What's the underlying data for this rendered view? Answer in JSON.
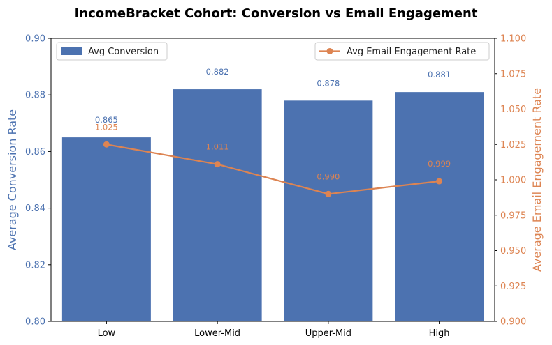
{
  "chart_data": {
    "type": "bar",
    "title": "IncomeBracket Cohort: Conversion vs Email Engagement",
    "categories": [
      "Low",
      "Lower-Mid",
      "Upper-Mid",
      "High"
    ],
    "series": [
      {
        "name": "Avg Conversion",
        "type": "bar",
        "axis": "left",
        "values": [
          0.865,
          0.882,
          0.878,
          0.881
        ],
        "labels": [
          "0.865",
          "0.882",
          "0.878",
          "0.881"
        ],
        "color": "#4c72b0"
      },
      {
        "name": "Avg Email Engagement Rate",
        "type": "line",
        "axis": "right",
        "values": [
          1.025,
          1.011,
          0.99,
          0.999
        ],
        "labels": [
          "1.025",
          "1.011",
          "0.990",
          "0.999"
        ],
        "color": "#dd8452"
      }
    ],
    "y_left": {
      "label": "Average Conversion Rate",
      "lim": [
        0.8,
        0.9
      ],
      "ticks": [
        "0.80",
        "0.82",
        "0.84",
        "0.86",
        "0.88",
        "0.90"
      ],
      "color": "#4c72b0"
    },
    "y_right": {
      "label": "Average Email Engagement Rate",
      "lim": [
        0.9,
        1.1
      ],
      "ticks": [
        "0.900",
        "0.925",
        "0.950",
        "0.975",
        "1.000",
        "1.025",
        "1.050",
        "1.075",
        "1.100"
      ],
      "color": "#dd8452"
    },
    "grid": false,
    "legend": {
      "bar_position": "top-left",
      "line_position": "top-right"
    }
  }
}
